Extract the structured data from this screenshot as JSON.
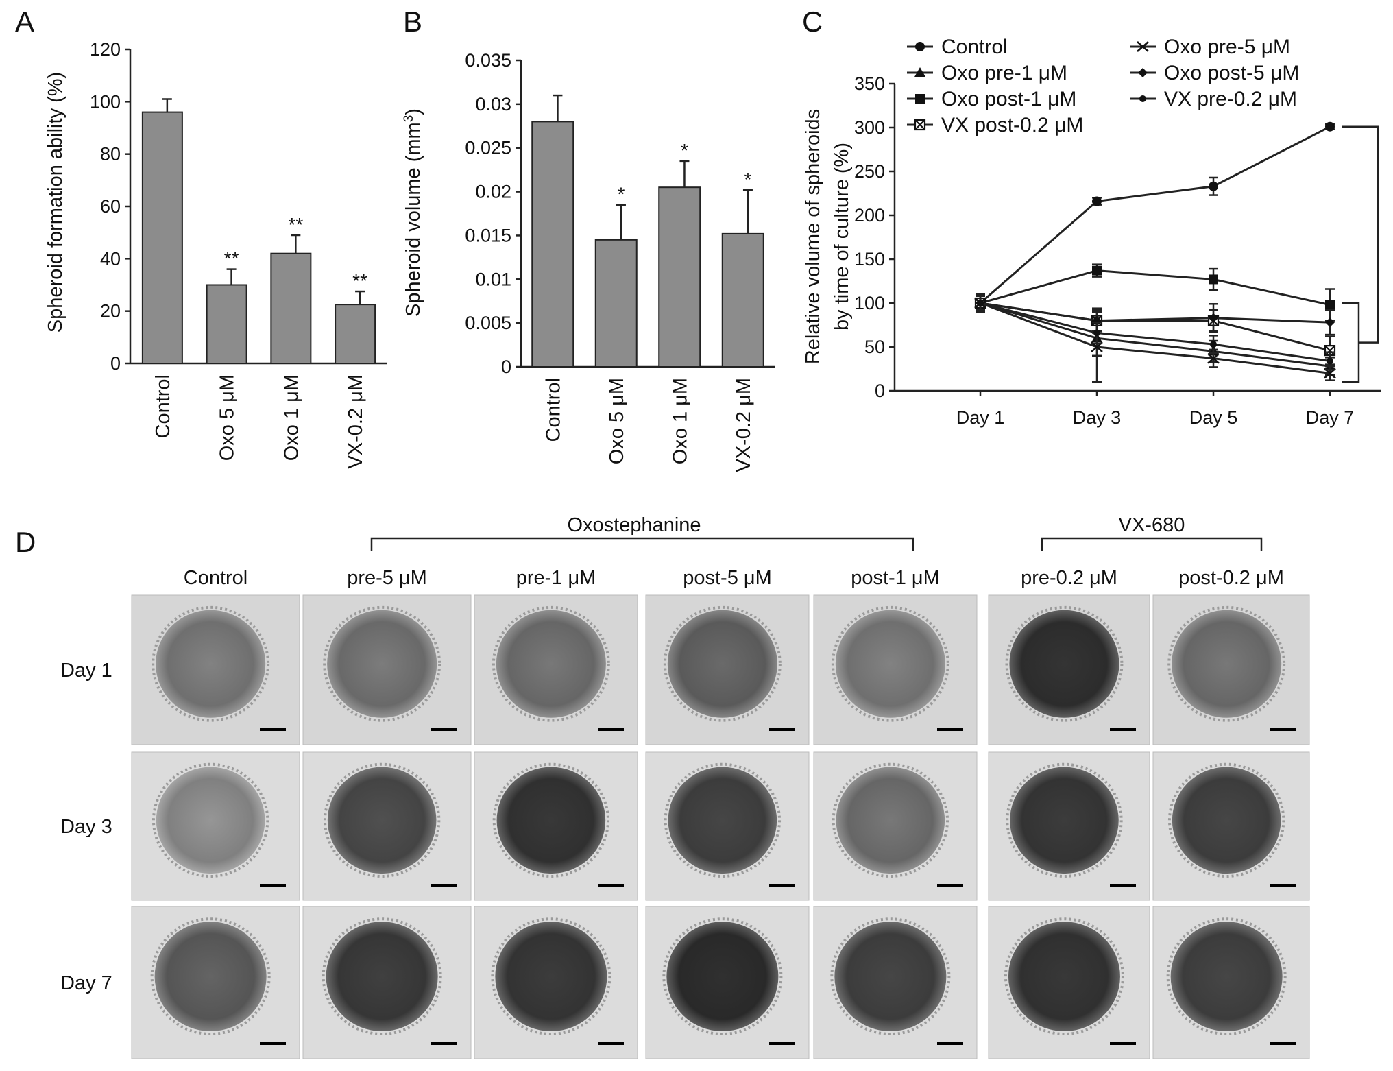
{
  "labels": {
    "panel_A": "A",
    "panel_B": "B",
    "panel_C": "C",
    "panel_D": "D"
  },
  "chart_data": [
    {
      "type": "bar",
      "panel": "A",
      "ylabel": "Spheroid formation ability (%)",
      "ylim": [
        0,
        120
      ],
      "yticks": [
        0,
        20,
        40,
        60,
        80,
        100,
        120
      ],
      "categories": [
        "Control",
        "Oxo 5 μM",
        "Oxo 1 μM",
        "VX-0.2 μM"
      ],
      "values": [
        96,
        30,
        42,
        22.5
      ],
      "errors": [
        5,
        6,
        7,
        5
      ],
      "significance": [
        "",
        "**",
        "**",
        "**"
      ]
    },
    {
      "type": "bar",
      "panel": "B",
      "ylabel_main": "Spheroid volume (mm",
      "ylabel_sup": "3",
      "ylabel_end": ")",
      "ylim": [
        0,
        0.035
      ],
      "yticks": [
        "0",
        "0.005",
        "0.01",
        "0.015",
        "0.02",
        "0.025",
        "0.03",
        "0.035"
      ],
      "categories": [
        "Control",
        "Oxo 5 μM",
        "Oxo 1 μM",
        "VX-0.2 μM"
      ],
      "values": [
        0.028,
        0.0145,
        0.0205,
        0.0152
      ],
      "errors": [
        0.003,
        0.004,
        0.003,
        0.005
      ],
      "significance": [
        "",
        "*",
        "*",
        "*"
      ]
    },
    {
      "type": "line",
      "panel": "C",
      "ylabel_line1": "Relative volume of spheroids",
      "ylabel_line2": "by time of culture (%)",
      "ylim": [
        0,
        350
      ],
      "yticks": [
        0,
        50,
        100,
        150,
        200,
        250,
        300,
        350
      ],
      "x": [
        "Day 1",
        "Day 3",
        "Day 5",
        "Day 7"
      ],
      "series": [
        {
          "name": "Control",
          "marker": "circle",
          "values": [
            100,
            216,
            233,
            301
          ],
          "errors": [
            8,
            4,
            10,
            3
          ]
        },
        {
          "name": "Oxo pre-1 μM",
          "marker": "triangle",
          "values": [
            100,
            60,
            45,
            28
          ],
          "errors": [
            10,
            20,
            12,
            10
          ]
        },
        {
          "name": "Oxo post-1 μM",
          "marker": "square",
          "values": [
            100,
            137,
            127,
            98
          ],
          "errors": [
            10,
            7,
            12,
            18
          ]
        },
        {
          "name": "VX post-0.2 μM",
          "marker": "xbox",
          "values": [
            100,
            80,
            80,
            46
          ],
          "errors": [
            10,
            14,
            12,
            16
          ]
        },
        {
          "name": "Oxo pre-5 μM",
          "marker": "x",
          "values": [
            100,
            50,
            37,
            20
          ],
          "errors": [
            10,
            40,
            10,
            8
          ]
        },
        {
          "name": "Oxo post-5 μM",
          "marker": "diamond",
          "values": [
            100,
            80,
            83,
            78
          ],
          "errors": [
            10,
            12,
            16,
            14
          ]
        },
        {
          "name": "VX pre-0.2 μM",
          "marker": "smallcircle",
          "values": [
            100,
            66,
            53,
            34
          ],
          "errors": [
            10,
            12,
            10,
            10
          ]
        }
      ]
    }
  ],
  "micrographs": {
    "group_oxo": "Oxostephanine",
    "group_vx": "VX-680",
    "columns": [
      "Control",
      "pre-5 μM",
      "pre-1 μM",
      "post-5 μM",
      "post-1 μM",
      "pre-0.2 μM",
      "post-0.2 μM"
    ],
    "rows": [
      "Day 1",
      "Day 3",
      "Day 7"
    ],
    "tone": [
      [
        0.45,
        0.42,
        0.4,
        0.33,
        0.45,
        0.06,
        0.4
      ],
      [
        0.55,
        0.2,
        0.08,
        0.15,
        0.4,
        0.1,
        0.15
      ],
      [
        0.3,
        0.12,
        0.1,
        0.04,
        0.15,
        0.08,
        0.15
      ]
    ]
  }
}
